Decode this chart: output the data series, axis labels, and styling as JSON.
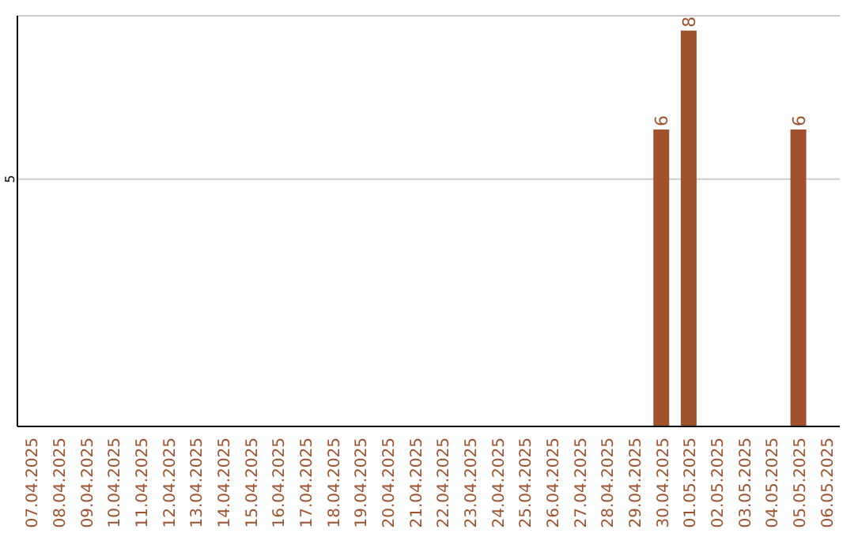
{
  "chart_data": {
    "type": "bar",
    "categories": [
      "07.04.2025",
      "08.04.2025",
      "09.04.2025",
      "10.04.2025",
      "11.04.2025",
      "12.04.2025",
      "13.04.2025",
      "14.04.2025",
      "15.04.2025",
      "16.04.2025",
      "17.04.2025",
      "18.04.2025",
      "19.04.2025",
      "20.04.2025",
      "21.04.2025",
      "22.04.2025",
      "23.04.2025",
      "24.04.2025",
      "25.04.2025",
      "26.04.2025",
      "27.04.2025",
      "28.04.2025",
      "29.04.2025",
      "30.04.2025",
      "01.05.2025",
      "02.05.2025",
      "03.05.2025",
      "04.05.2025",
      "05.05.2025",
      "06.05.2025"
    ],
    "values": [
      null,
      null,
      null,
      null,
      null,
      null,
      null,
      null,
      null,
      null,
      null,
      null,
      null,
      null,
      null,
      null,
      null,
      null,
      null,
      null,
      null,
      null,
      null,
      6,
      8,
      null,
      null,
      null,
      6,
      null
    ],
    "color": "#a0522d",
    "ylim": [
      0,
      8.3
    ],
    "yticks": [
      5
    ],
    "grid": "y",
    "data_labels": true
  }
}
